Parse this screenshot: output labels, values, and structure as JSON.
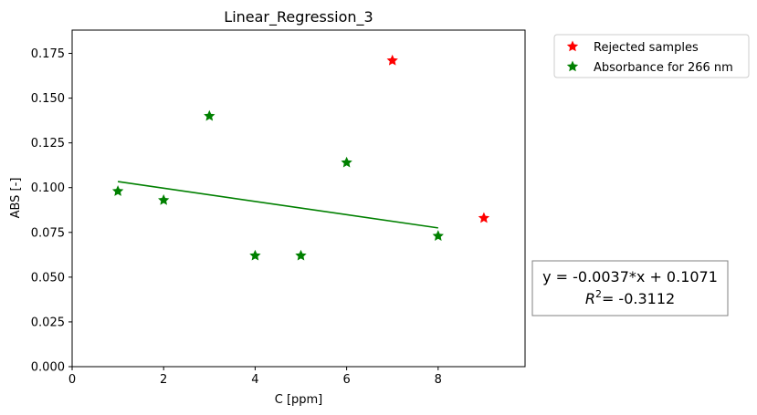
{
  "chart_data": {
    "type": "scatter",
    "title": "Linear_Regression_3",
    "xlabel": "C [ppm]",
    "ylabel": "ABS [-]",
    "xlim": [
      0,
      9.9
    ],
    "ylim": [
      0,
      0.188
    ],
    "xticks": [
      0,
      2,
      4,
      6,
      8
    ],
    "xtick_labels": [
      "0",
      "2",
      "4",
      "6",
      "8"
    ],
    "yticks": [
      0,
      0.025,
      0.05,
      0.075,
      0.1,
      0.125,
      0.15,
      0.175
    ],
    "ytick_labels": [
      "0.000",
      "0.025",
      "0.050",
      "0.075",
      "0.100",
      "0.125",
      "0.150",
      "0.175"
    ],
    "grid": false,
    "legend_placement": "outside-top-right",
    "series": [
      {
        "name": "Rejected samples",
        "color": "#ff0000",
        "marker": "star",
        "x": [
          7,
          9
        ],
        "y": [
          0.171,
          0.083
        ]
      },
      {
        "name": "Absorbance for 266 nm",
        "color": "#008000",
        "marker": "star",
        "x": [
          1,
          2,
          3,
          4,
          5,
          6,
          8
        ],
        "y": [
          0.098,
          0.093,
          0.14,
          0.062,
          0.062,
          0.114,
          0.073
        ]
      }
    ],
    "fit_line": {
      "color": "#008000",
      "x": [
        1,
        8
      ],
      "slope": -0.0037,
      "intercept": 0.1071
    },
    "annotation": {
      "line1": "y = -0.0037*x + 0.1071",
      "line2": "= -0.3112"
    }
  }
}
